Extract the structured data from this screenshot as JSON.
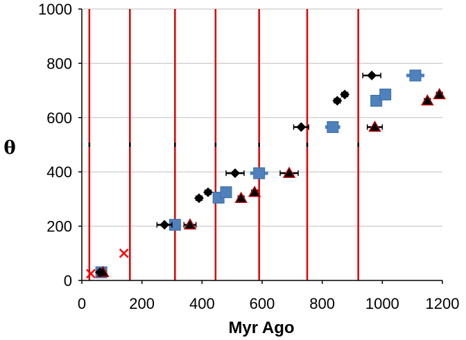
{
  "chart_data": {
    "type": "scatter",
    "title": "",
    "xlabel": "Myr Ago",
    "ylabel": "θ",
    "xlim": [
      0,
      1200
    ],
    "ylim": [
      0,
      1000
    ],
    "x_ticks": [
      "0",
      "200",
      "400",
      "600",
      "800",
      "1000",
      "1200"
    ],
    "y_ticks": [
      "0",
      "200",
      "400",
      "600",
      "800",
      "1000"
    ],
    "grid": "horizontal",
    "colors": {
      "diamond": "#000000",
      "square": "#4f81bd",
      "triangle": "#000000",
      "triangle_edge": "#c00000",
      "cross": "#ff0000",
      "vline": "#e00000",
      "grid": "#bfbfbf",
      "errorbar": "#000000"
    },
    "vertical_lines": [
      25,
      160,
      310,
      445,
      590,
      750,
      920
    ],
    "series": [
      {
        "name": "diamonds",
        "marker": "diamond",
        "points": [
          {
            "x": 60,
            "y": 30,
            "err": 5
          },
          {
            "x": 275,
            "y": 205,
            "err": 25
          },
          {
            "x": 390,
            "y": 303,
            "err": 10
          },
          {
            "x": 420,
            "y": 325,
            "err": 10
          },
          {
            "x": 510,
            "y": 395,
            "err": 30
          },
          {
            "x": 730,
            "y": 565,
            "err": 25
          },
          {
            "x": 850,
            "y": 662,
            "err": 10
          },
          {
            "x": 875,
            "y": 685,
            "err": 10
          },
          {
            "x": 965,
            "y": 755,
            "err": 30
          }
        ]
      },
      {
        "name": "squares",
        "marker": "square",
        "points": [
          {
            "x": 65,
            "y": 30,
            "err": 5
          },
          {
            "x": 310,
            "y": 205,
            "err": 20
          },
          {
            "x": 455,
            "y": 305,
            "err": 10
          },
          {
            "x": 480,
            "y": 325,
            "err": 10
          },
          {
            "x": 590,
            "y": 395,
            "err": 30
          },
          {
            "x": 835,
            "y": 565,
            "err": 25
          },
          {
            "x": 980,
            "y": 662,
            "err": 10
          },
          {
            "x": 1010,
            "y": 685,
            "err": 10
          },
          {
            "x": 1110,
            "y": 755,
            "err": 30
          }
        ]
      },
      {
        "name": "triangles",
        "marker": "triangle",
        "points": [
          {
            "x": 70,
            "y": 30,
            "err": 5
          },
          {
            "x": 360,
            "y": 205,
            "err": 20
          },
          {
            "x": 530,
            "y": 303,
            "err": 10
          },
          {
            "x": 575,
            "y": 325,
            "err": 10
          },
          {
            "x": 690,
            "y": 395,
            "err": 30
          },
          {
            "x": 975,
            "y": 565,
            "err": 25
          },
          {
            "x": 1150,
            "y": 662,
            "err": 10
          },
          {
            "x": 1190,
            "y": 685,
            "err": 10
          }
        ]
      },
      {
        "name": "crosses",
        "marker": "cross",
        "points": [
          {
            "x": 30,
            "y": 25
          },
          {
            "x": 140,
            "y": 100
          }
        ]
      }
    ]
  }
}
